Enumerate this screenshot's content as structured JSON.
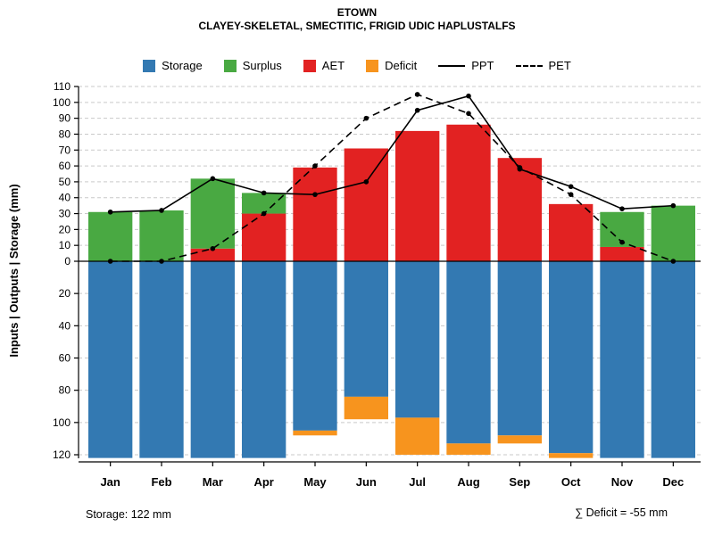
{
  "chart_data": {
    "type": "combo-bar-line-water-balance",
    "title": "ETOWN",
    "subtitle": "CLAYEY-SKELETAL, SMECTITIC, FRIGID UDIC HAPLUSTALFS",
    "ylabel": "Inputs | Outputs | Storage  (mm)",
    "units": "mm",
    "categories": [
      "Jan",
      "Feb",
      "Mar",
      "Apr",
      "May",
      "Jun",
      "Jul",
      "Aug",
      "Sep",
      "Oct",
      "Nov",
      "Dec"
    ],
    "legend": [
      "Storage",
      "Surplus",
      "AET",
      "Deficit",
      "PPT",
      "PET"
    ],
    "y_axis": {
      "up_max": 110,
      "down_max": 120,
      "up_ticks": [
        0,
        10,
        20,
        30,
        40,
        50,
        60,
        70,
        80,
        90,
        100,
        110
      ],
      "down_ticks": [
        20,
        40,
        60,
        80,
        100,
        120
      ],
      "grid": "dashed"
    },
    "series": [
      {
        "name": "Storage",
        "type": "bar",
        "direction": "down",
        "color": "#3379b2",
        "values": [
          122,
          122,
          122,
          122,
          105,
          84,
          97,
          113,
          108,
          119,
          122,
          122
        ]
      },
      {
        "name": "Deficit",
        "type": "bar",
        "direction": "down",
        "stacked_on": "Storage",
        "color": "#f7941e",
        "values": [
          0,
          0,
          0,
          0,
          3,
          14,
          23,
          7,
          5,
          3,
          0,
          0
        ]
      },
      {
        "name": "AET",
        "type": "bar",
        "direction": "up",
        "color": "#e22222",
        "values": [
          0,
          0,
          8,
          30,
          59,
          71,
          82,
          86,
          65,
          36,
          9,
          0
        ]
      },
      {
        "name": "Surplus",
        "type": "bar",
        "direction": "up",
        "stacked_on": "AET",
        "color": "#49a942",
        "values": [
          31,
          32,
          44,
          13,
          0,
          0,
          0,
          0,
          0,
          0,
          22,
          35
        ]
      },
      {
        "name": "PPT",
        "type": "line",
        "style": "solid",
        "color": "#000000",
        "marker": "circle",
        "values": [
          31,
          32,
          52,
          43,
          42,
          50,
          95,
          104,
          58,
          47,
          33,
          35
        ]
      },
      {
        "name": "PET",
        "type": "line",
        "style": "dashed",
        "color": "#000000",
        "marker": "circle",
        "values": [
          0,
          0,
          8,
          30,
          60,
          90,
          105,
          93,
          59,
          42,
          12,
          0
        ]
      }
    ],
    "annotations": {
      "storage_note": "Storage: 122 mm",
      "deficit_note": "∑ Deficit = -55 mm"
    }
  }
}
